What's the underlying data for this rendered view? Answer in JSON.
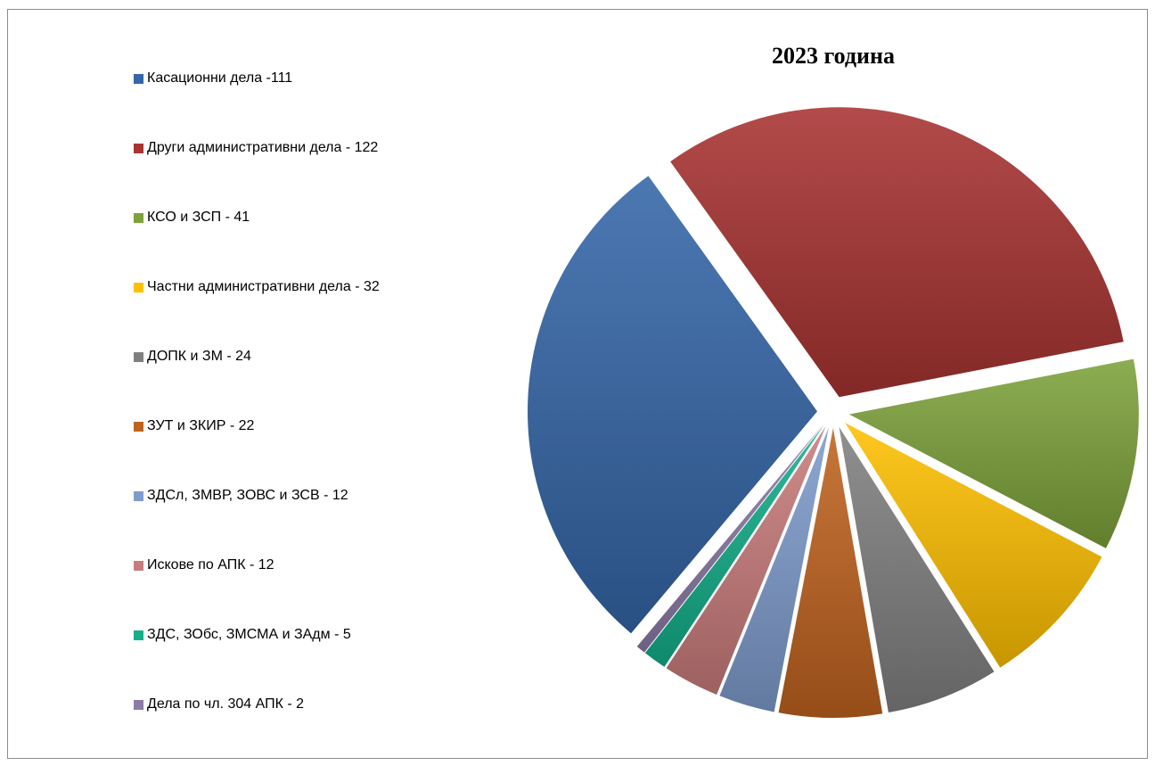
{
  "chart_data": {
    "type": "pie",
    "title": "2023 година",
    "legend_position": "left",
    "slices": [
      {
        "label": "Касационни дела -111",
        "value": 111,
        "color": "#3466a8"
      },
      {
        "label": "Други административни дела - 122",
        "value": 122,
        "color": "#a83331"
      },
      {
        "label": "КСО и ЗСП - 41",
        "value": 41,
        "color": "#7ea23a"
      },
      {
        "label": "Частни административни дела - 32",
        "value": 32,
        "color": "#ffc000"
      },
      {
        "label": "ДОПК и ЗМ - 24",
        "value": 24,
        "color": "#808080"
      },
      {
        "label": "ЗУТ и ЗКИР - 22",
        "value": 22,
        "color": "#c0631f"
      },
      {
        "label": "ЗДСл, ЗМВР, ЗОВС и ЗСВ - 12",
        "value": 12,
        "color": "#7f9ccd"
      },
      {
        "label": "Искове по АПК - 12",
        "value": 12,
        "color": "#c97c7b"
      },
      {
        "label": "ЗДС, ЗОбс, ЗМСМА и ЗАдм - 5",
        "value": 5,
        "color": "#13b08a"
      },
      {
        "label": "Дела по чл. 304 АПК - 2",
        "value": 2,
        "color": "#8d7ba8"
      }
    ]
  }
}
